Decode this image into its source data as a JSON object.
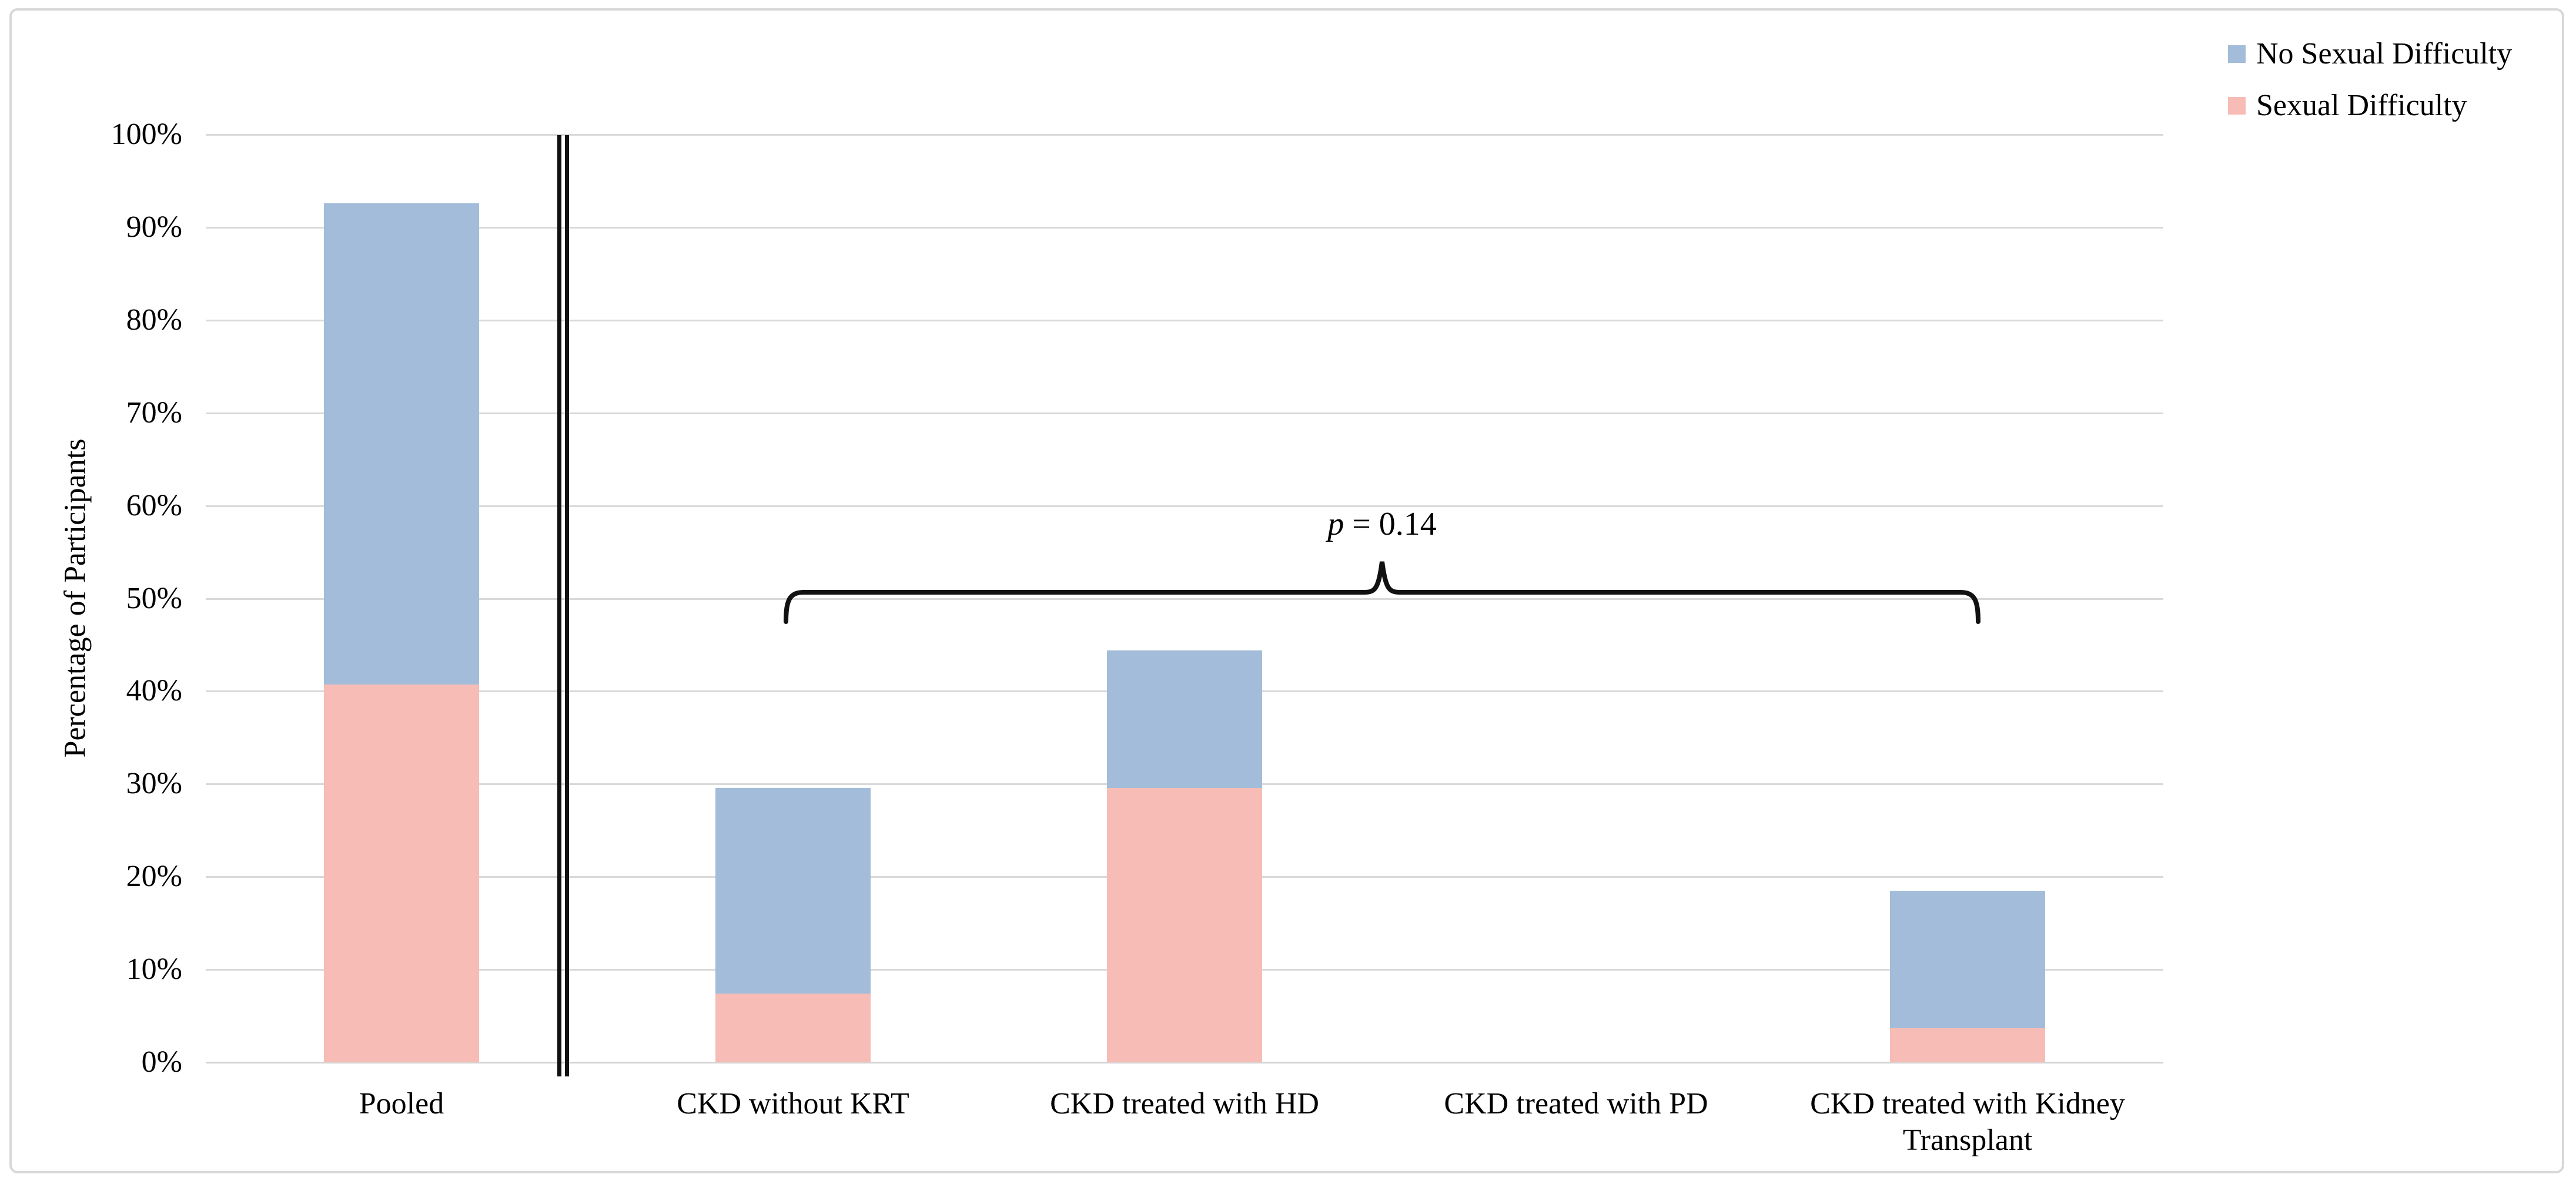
{
  "chart_data": {
    "type": "bar",
    "stacked": true,
    "title": "",
    "xlabel": "",
    "ylabel": "Percentage of Participants",
    "ylim": [
      0,
      100
    ],
    "ytick_step": 10,
    "ytick_labels": [
      "0%",
      "10%",
      "20%",
      "30%",
      "40%",
      "50%",
      "60%",
      "70%",
      "80%",
      "90%",
      "100%"
    ],
    "grid": "horizontal",
    "categories": [
      "Pooled",
      "CKD without KRT",
      "CKD treated with HD",
      "CKD treated with PD",
      "CKD treated with Kidney Transplant"
    ],
    "series": [
      {
        "name": "Sexual Difficulty",
        "color": "#f6bcb5",
        "values": [
          40.7,
          7.4,
          29.6,
          0,
          3.7
        ]
      },
      {
        "name": "No Sexual Difficulty",
        "color": "#a3bcd9",
        "values": [
          51.9,
          22.2,
          14.8,
          0,
          14.8
        ]
      }
    ],
    "stack_totals": [
      92.6,
      29.6,
      44.4,
      0,
      18.5
    ],
    "legend": [
      {
        "label": "No Sexual Difficulty",
        "color": "#a3bcd9"
      },
      {
        "label": "Sexual Difficulty",
        "color": "#f6bcb5"
      }
    ],
    "legend_position": "top-right",
    "axis_break_after_category": "Pooled",
    "annotation": {
      "text": "p = 0.14",
      "p_symbol": "p",
      "p_rest": " = 0.14",
      "bracket_from": "CKD without KRT",
      "bracket_to": "CKD treated with Kidney Transplant"
    }
  }
}
